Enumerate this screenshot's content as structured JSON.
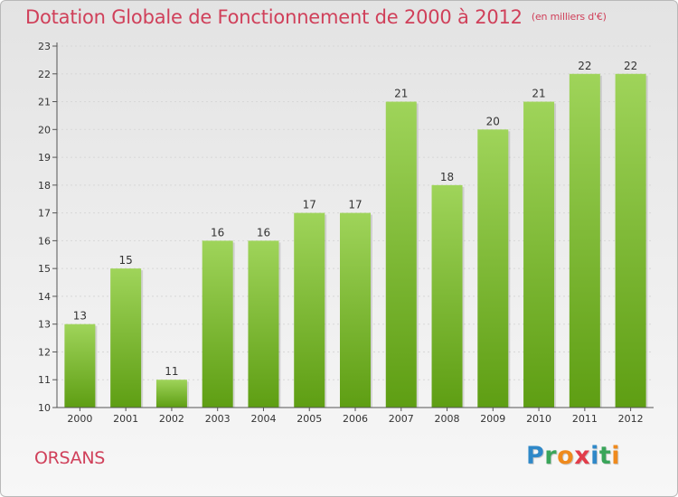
{
  "header": {
    "title": "Dotation Globale de Fonctionnement de 2000 à 2012",
    "unit": "(en milliers d'€)"
  },
  "footer": {
    "commune": "ORSANS",
    "logo_letters": [
      {
        "char": "P",
        "color": "#2f88c8"
      },
      {
        "char": "r",
        "color": "#3aa55a"
      },
      {
        "char": "o",
        "color": "#ef8a1d"
      },
      {
        "char": "x",
        "color": "#e23d4a"
      },
      {
        "char": "i",
        "color": "#2f88c8"
      },
      {
        "char": "t",
        "color": "#3aa55a"
      },
      {
        "char": "i",
        "color": "#ef8a1d"
      }
    ]
  },
  "colors": {
    "title": "#d0405a",
    "bar_top": "#9fd45a",
    "bar_bottom": "#5e9e13",
    "axis": "#555555",
    "grid": "#d8d8d8"
  },
  "chart_data": {
    "type": "bar",
    "title": "Dotation Globale de Fonctionnement de 2000 à 2012",
    "subtitle": "(en milliers d'€)",
    "categories": [
      "2000",
      "2001",
      "2002",
      "2003",
      "2004",
      "2005",
      "2006",
      "2007",
      "2008",
      "2009",
      "2010",
      "2011",
      "2012"
    ],
    "values": [
      13,
      15,
      11,
      16,
      16,
      17,
      17,
      21,
      18,
      20,
      21,
      22,
      22
    ],
    "ylim": [
      10,
      23
    ],
    "yticks": [
      10,
      11,
      12,
      13,
      14,
      15,
      16,
      17,
      18,
      19,
      20,
      21,
      22,
      23
    ],
    "grid": true,
    "legend": false
  }
}
